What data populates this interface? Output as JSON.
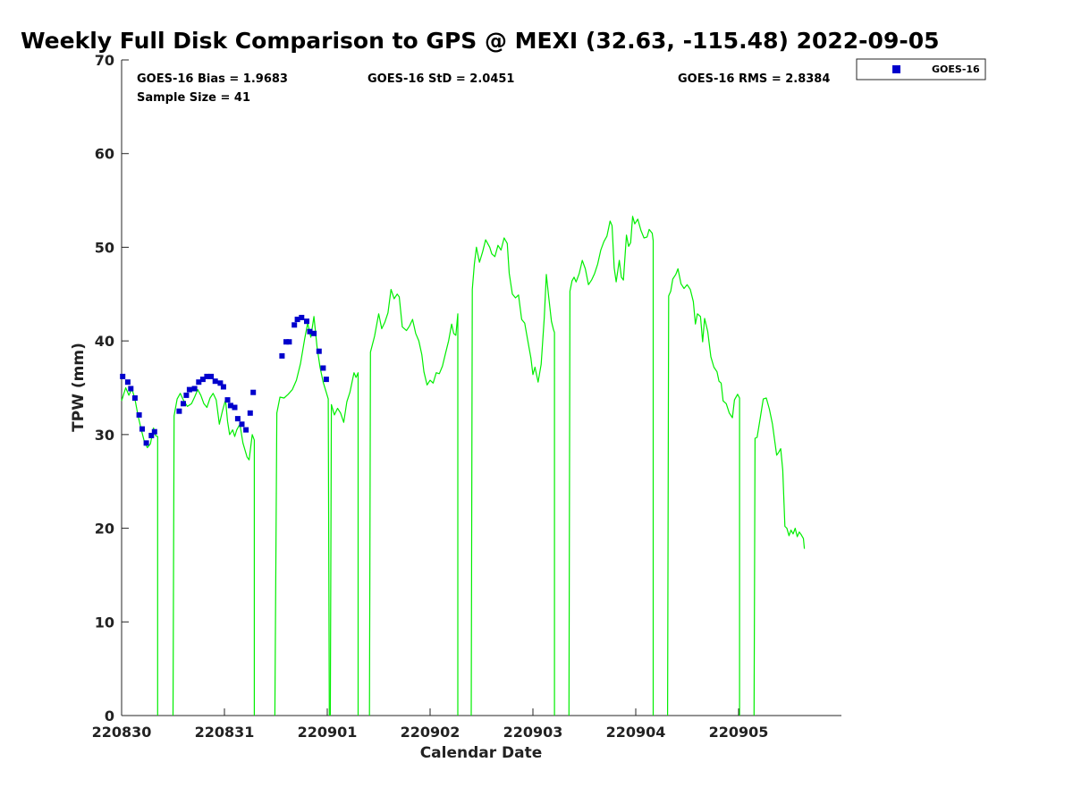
{
  "chart_data": {
    "type": "line",
    "title": "Weekly Full Disk Comparison to GPS @ MEXI (32.63, -115.48) 2022-09-05",
    "xlabel": "Calendar Date",
    "ylabel": "TPW (mm)",
    "xlim": [
      0,
      7
    ],
    "ylim": [
      0,
      70
    ],
    "x_ticks": [
      {
        "value": 0,
        "label": "220830"
      },
      {
        "value": 1,
        "label": "220831"
      },
      {
        "value": 2,
        "label": "220901"
      },
      {
        "value": 3,
        "label": "220902"
      },
      {
        "value": 4,
        "label": "220903"
      },
      {
        "value": 5,
        "label": "220904"
      },
      {
        "value": 6,
        "label": "220905"
      }
    ],
    "y_ticks": [
      "0",
      "10",
      "20",
      "30",
      "40",
      "50",
      "60",
      "70"
    ],
    "grid": false,
    "legend": {
      "placement": "top-right",
      "entries": [
        "GOES-16"
      ]
    },
    "stats": {
      "bias": "GOES-16 Bias = 1.9683",
      "std": "GOES-16 StD = 2.0451",
      "rms": "GOES-16 RMS = 2.8384",
      "sample": "Sample Size = 41"
    },
    "series": [
      {
        "name": "GOES-16",
        "kind": "scatter",
        "color": "#0000cc",
        "points": [
          [
            0.01,
            36.2
          ],
          [
            0.06,
            35.6
          ],
          [
            0.09,
            34.9
          ],
          [
            0.13,
            33.9
          ],
          [
            0.17,
            32.1
          ],
          [
            0.2,
            30.6
          ],
          [
            0.24,
            29.1
          ],
          [
            0.29,
            29.9
          ],
          [
            0.32,
            30.3
          ],
          [
            0.56,
            32.5
          ],
          [
            0.6,
            33.3
          ],
          [
            0.63,
            34.2
          ],
          [
            0.66,
            34.8
          ],
          [
            0.71,
            34.9
          ],
          [
            0.75,
            35.6
          ],
          [
            0.79,
            35.9
          ],
          [
            0.83,
            36.2
          ],
          [
            0.87,
            36.2
          ],
          [
            0.91,
            35.7
          ],
          [
            0.96,
            35.5
          ],
          [
            0.99,
            35.1
          ],
          [
            1.03,
            33.7
          ],
          [
            1.06,
            33.1
          ],
          [
            1.1,
            32.9
          ],
          [
            1.13,
            31.7
          ],
          [
            1.17,
            31.1
          ],
          [
            1.21,
            30.5
          ],
          [
            1.25,
            32.3
          ],
          [
            1.28,
            34.5
          ],
          [
            1.56,
            38.4
          ],
          [
            1.6,
            39.9
          ],
          [
            1.63,
            39.9
          ],
          [
            1.68,
            41.7
          ],
          [
            1.71,
            42.3
          ],
          [
            1.75,
            42.5
          ],
          [
            1.8,
            42.1
          ],
          [
            1.83,
            41.0
          ],
          [
            1.87,
            40.8
          ],
          [
            1.92,
            38.9
          ],
          [
            1.96,
            37.1
          ],
          [
            1.99,
            35.9
          ]
        ]
      },
      {
        "name": "GPS",
        "kind": "line",
        "color": "#00ee00",
        "segments": [
          [
            [
              0.0,
              33.6
            ],
            [
              0.04,
              35.0
            ],
            [
              0.07,
              34.2
            ],
            [
              0.1,
              34.9
            ],
            [
              0.13,
              33.8
            ],
            [
              0.16,
              32.0
            ],
            [
              0.19,
              30.6
            ],
            [
              0.22,
              29.3
            ],
            [
              0.25,
              28.6
            ],
            [
              0.28,
              29.0
            ],
            [
              0.31,
              30.7
            ],
            [
              0.33,
              29.9
            ],
            [
              0.35,
              29.8
            ],
            [
              0.35,
              0
            ]
          ],
          [
            [
              0.5,
              0
            ],
            [
              0.51,
              32.0
            ],
            [
              0.54,
              33.8
            ],
            [
              0.57,
              34.4
            ],
            [
              0.6,
              33.7
            ],
            [
              0.64,
              33.0
            ],
            [
              0.68,
              33.3
            ],
            [
              0.71,
              34.0
            ],
            [
              0.74,
              34.8
            ],
            [
              0.77,
              34.2
            ],
            [
              0.8,
              33.3
            ],
            [
              0.83,
              32.9
            ],
            [
              0.86,
              33.9
            ],
            [
              0.89,
              34.4
            ],
            [
              0.92,
              33.7
            ],
            [
              0.95,
              31.1
            ],
            [
              0.98,
              32.5
            ],
            [
              1.01,
              33.7
            ],
            [
              1.03,
              31.4
            ],
            [
              1.05,
              30.0
            ],
            [
              1.08,
              30.5
            ],
            [
              1.1,
              29.8
            ],
            [
              1.12,
              30.5
            ],
            [
              1.15,
              31.1
            ],
            [
              1.18,
              29.1
            ],
            [
              1.22,
              27.6
            ],
            [
              1.24,
              27.3
            ],
            [
              1.27,
              30.0
            ],
            [
              1.29,
              29.4
            ],
            [
              1.29,
              0
            ]
          ],
          [
            [
              1.49,
              0
            ],
            [
              1.51,
              32.3
            ],
            [
              1.54,
              34.0
            ],
            [
              1.58,
              33.9
            ],
            [
              1.62,
              34.3
            ],
            [
              1.66,
              34.8
            ],
            [
              1.7,
              35.8
            ],
            [
              1.74,
              37.6
            ],
            [
              1.78,
              40.2
            ],
            [
              1.81,
              41.9
            ],
            [
              1.84,
              40.4
            ],
            [
              1.87,
              42.6
            ],
            [
              1.9,
              39.4
            ],
            [
              1.93,
              37.2
            ],
            [
              1.96,
              35.6
            ],
            [
              1.99,
              34.5
            ],
            [
              2.01,
              33.8
            ],
            [
              2.02,
              0
            ]
          ],
          [
            [
              2.03,
              0
            ],
            [
              2.04,
              33.2
            ],
            [
              2.07,
              32.1
            ],
            [
              2.1,
              32.8
            ],
            [
              2.13,
              32.3
            ],
            [
              2.16,
              31.3
            ],
            [
              2.19,
              33.5
            ],
            [
              2.22,
              34.5
            ],
            [
              2.26,
              36.6
            ],
            [
              2.28,
              36.1
            ],
            [
              2.3,
              36.6
            ],
            [
              2.3,
              0
            ]
          ],
          [
            [
              2.41,
              0
            ],
            [
              2.42,
              38.8
            ],
            [
              2.46,
              40.5
            ],
            [
              2.5,
              42.9
            ],
            [
              2.53,
              41.3
            ],
            [
              2.56,
              42.0
            ],
            [
              2.59,
              43.0
            ],
            [
              2.62,
              45.5
            ],
            [
              2.65,
              44.5
            ],
            [
              2.68,
              45.0
            ],
            [
              2.7,
              44.7
            ],
            [
              2.73,
              41.5
            ],
            [
              2.77,
              41.1
            ],
            [
              2.8,
              41.6
            ],
            [
              2.83,
              42.3
            ],
            [
              2.86,
              40.8
            ],
            [
              2.89,
              40.0
            ],
            [
              2.92,
              38.5
            ],
            [
              2.94,
              36.7
            ],
            [
              2.97,
              35.3
            ],
            [
              3.0,
              35.8
            ],
            [
              3.03,
              35.5
            ],
            [
              3.06,
              36.6
            ],
            [
              3.09,
              36.5
            ],
            [
              3.12,
              37.3
            ],
            [
              3.15,
              38.7
            ],
            [
              3.18,
              40.0
            ],
            [
              3.21,
              41.8
            ],
            [
              3.23,
              40.8
            ],
            [
              3.25,
              40.6
            ],
            [
              3.27,
              42.9
            ],
            [
              3.27,
              0
            ]
          ],
          [
            [
              3.4,
              0
            ],
            [
              3.41,
              45.5
            ],
            [
              3.43,
              48.2
            ],
            [
              3.45,
              50.0
            ],
            [
              3.48,
              48.4
            ],
            [
              3.51,
              49.5
            ],
            [
              3.54,
              50.8
            ],
            [
              3.58,
              50.0
            ],
            [
              3.6,
              49.3
            ],
            [
              3.63,
              49.0
            ],
            [
              3.66,
              50.2
            ],
            [
              3.69,
              49.7
            ],
            [
              3.72,
              51.0
            ],
            [
              3.75,
              50.4
            ],
            [
              3.77,
              47.2
            ],
            [
              3.8,
              45.0
            ],
            [
              3.83,
              44.6
            ],
            [
              3.86,
              44.9
            ],
            [
              3.89,
              42.3
            ],
            [
              3.92,
              41.9
            ],
            [
              3.95,
              40.0
            ],
            [
              3.98,
              38.2
            ],
            [
              4.0,
              36.4
            ],
            [
              4.02,
              37.2
            ],
            [
              4.05,
              35.6
            ],
            [
              4.08,
              37.5
            ],
            [
              4.11,
              42.5
            ],
            [
              4.13,
              47.1
            ],
            [
              4.15,
              45.0
            ],
            [
              4.18,
              42.1
            ],
            [
              4.2,
              41.2
            ],
            [
              4.21,
              40.9
            ],
            [
              4.21,
              0
            ]
          ],
          [
            [
              4.35,
              0
            ],
            [
              4.36,
              45.3
            ],
            [
              4.38,
              46.4
            ],
            [
              4.4,
              46.8
            ],
            [
              4.42,
              46.3
            ],
            [
              4.45,
              47.2
            ],
            [
              4.48,
              48.6
            ],
            [
              4.51,
              47.7
            ],
            [
              4.54,
              46.0
            ],
            [
              4.57,
              46.5
            ],
            [
              4.6,
              47.2
            ],
            [
              4.63,
              48.2
            ],
            [
              4.66,
              49.7
            ],
            [
              4.69,
              50.6
            ],
            [
              4.72,
              51.2
            ],
            [
              4.75,
              52.8
            ],
            [
              4.77,
              52.3
            ],
            [
              4.79,
              47.8
            ],
            [
              4.81,
              46.3
            ],
            [
              4.84,
              48.6
            ],
            [
              4.86,
              46.8
            ],
            [
              4.88,
              46.5
            ],
            [
              4.91,
              51.3
            ],
            [
              4.93,
              50.1
            ],
            [
              4.95,
              50.5
            ],
            [
              4.97,
              53.3
            ],
            [
              4.99,
              52.5
            ],
            [
              5.02,
              53.0
            ],
            [
              5.05,
              51.8
            ],
            [
              5.08,
              51.0
            ],
            [
              5.11,
              51.1
            ],
            [
              5.13,
              51.9
            ],
            [
              5.16,
              51.5
            ],
            [
              5.17,
              50.7
            ],
            [
              5.17,
              0
            ]
          ],
          [
            [
              5.31,
              0
            ],
            [
              5.32,
              44.8
            ],
            [
              5.34,
              45.3
            ],
            [
              5.36,
              46.6
            ],
            [
              5.39,
              47.1
            ],
            [
              5.41,
              47.7
            ],
            [
              5.44,
              46.1
            ],
            [
              5.47,
              45.6
            ],
            [
              5.5,
              46.0
            ],
            [
              5.53,
              45.5
            ],
            [
              5.56,
              44.2
            ],
            [
              5.58,
              41.8
            ],
            [
              5.6,
              42.9
            ],
            [
              5.63,
              42.6
            ],
            [
              5.65,
              39.9
            ],
            [
              5.67,
              42.4
            ],
            [
              5.7,
              41.0
            ],
            [
              5.73,
              38.3
            ],
            [
              5.76,
              37.2
            ],
            [
              5.79,
              36.7
            ],
            [
              5.81,
              35.7
            ],
            [
              5.83,
              35.5
            ],
            [
              5.85,
              33.6
            ],
            [
              5.88,
              33.3
            ],
            [
              5.91,
              32.3
            ],
            [
              5.94,
              31.8
            ],
            [
              5.96,
              33.7
            ],
            [
              5.99,
              34.3
            ],
            [
              6.01,
              33.9
            ],
            [
              6.01,
              0
            ]
          ],
          [
            [
              6.15,
              0
            ],
            [
              6.16,
              29.6
            ],
            [
              6.18,
              29.7
            ],
            [
              6.21,
              31.7
            ],
            [
              6.24,
              33.8
            ],
            [
              6.27,
              33.9
            ],
            [
              6.3,
              32.7
            ],
            [
              6.33,
              31.1
            ],
            [
              6.35,
              29.4
            ],
            [
              6.37,
              27.8
            ],
            [
              6.39,
              28.1
            ],
            [
              6.41,
              28.5
            ],
            [
              6.43,
              26.2
            ],
            [
              6.45,
              20.2
            ],
            [
              6.47,
              20.0
            ],
            [
              6.49,
              19.2
            ],
            [
              6.51,
              19.8
            ],
            [
              6.53,
              19.4
            ],
            [
              6.55,
              20.0
            ],
            [
              6.57,
              19.1
            ],
            [
              6.59,
              19.6
            ],
            [
              6.61,
              19.3
            ],
            [
              6.63,
              18.9
            ],
            [
              6.64,
              17.8
            ]
          ]
        ]
      }
    ]
  }
}
